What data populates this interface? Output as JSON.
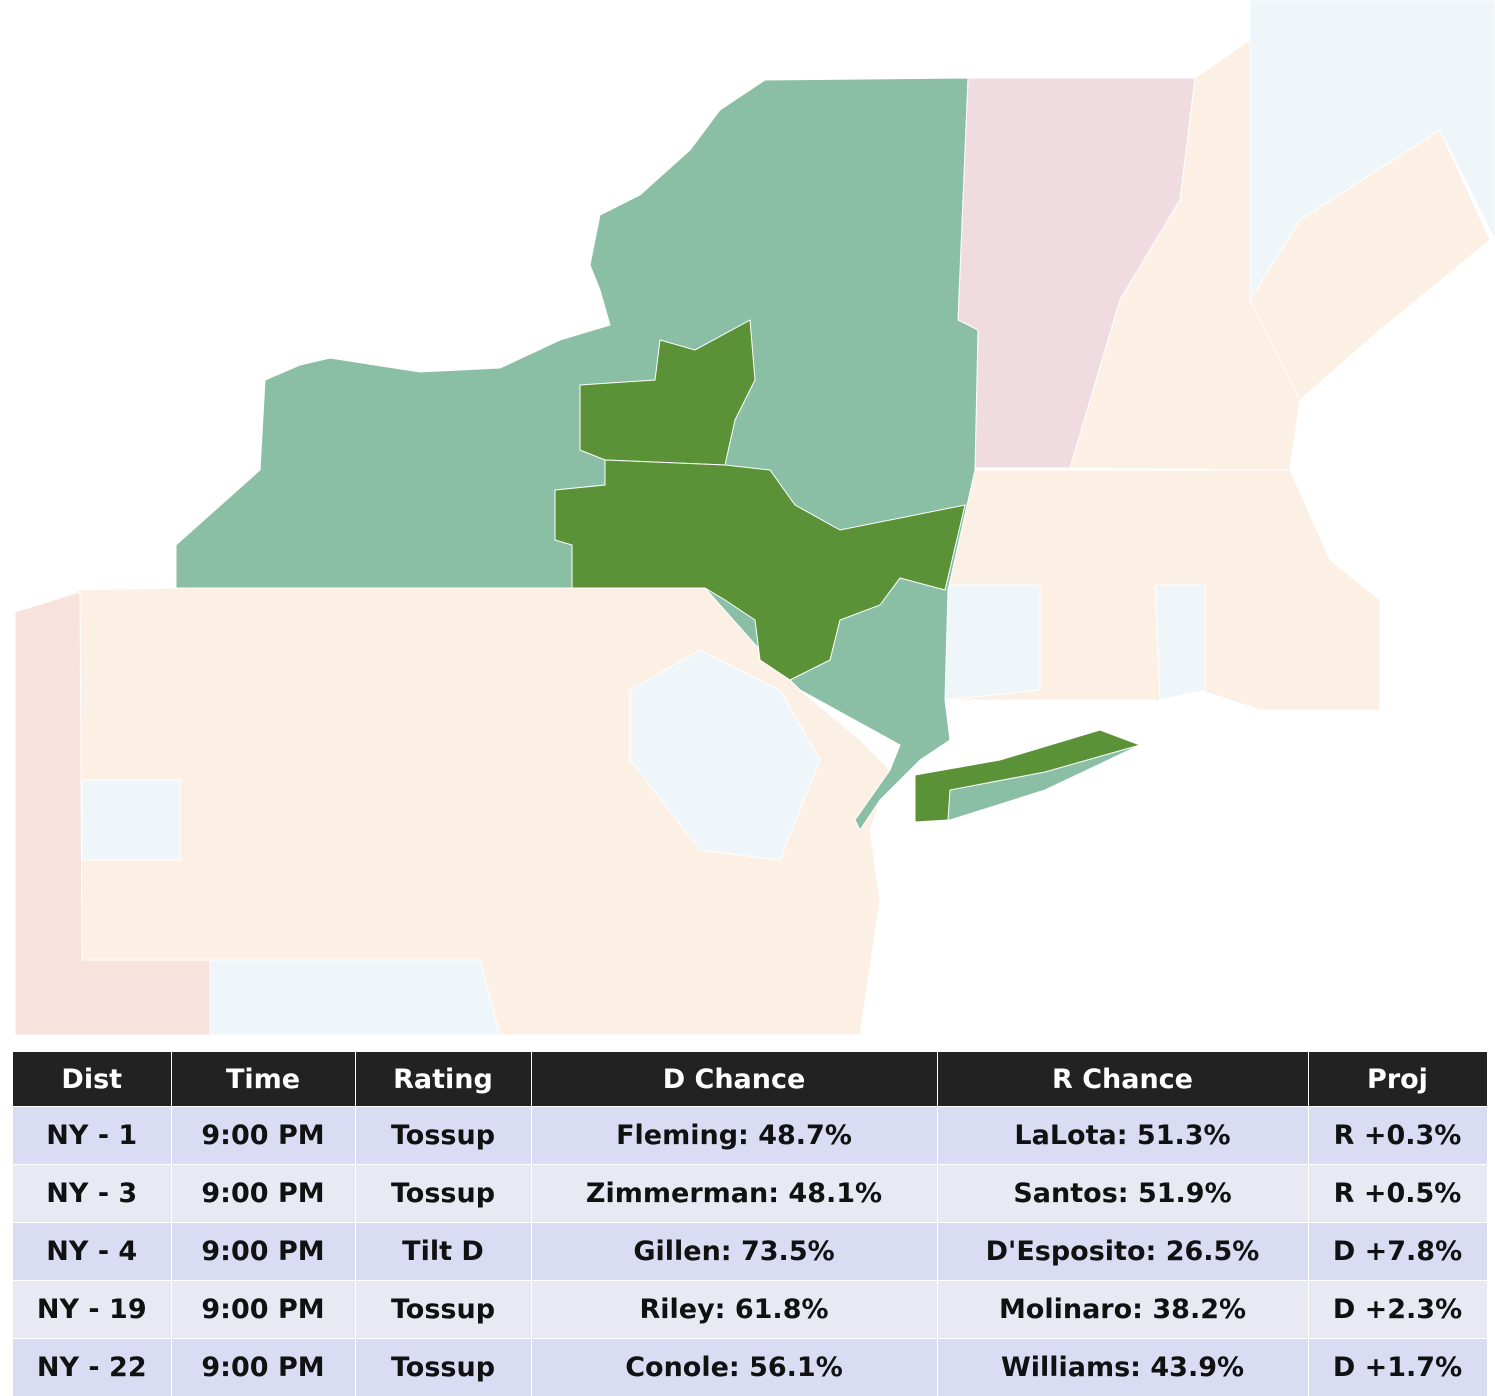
{
  "table": {
    "columns": [
      "Dist",
      "Time",
      "Rating",
      "D Chance",
      "R Chance",
      "Proj"
    ],
    "rows": [
      [
        "NY - 1",
        "9:00 PM",
        "Tossup",
        "Fleming: 48.7%",
        "LaLota: 51.3%",
        "R +0.3%"
      ],
      [
        "NY - 3",
        "9:00 PM",
        "Tossup",
        "Zimmerman: 48.1%",
        "Santos: 51.9%",
        "R +0.5%"
      ],
      [
        "NY - 4",
        "9:00 PM",
        "Tilt D",
        "Gillen: 73.5%",
        "D'Esposito: 26.5%",
        "D +7.8%"
      ],
      [
        "NY - 19",
        "9:00 PM",
        "Tossup",
        "Riley: 61.8%",
        "Molinaro: 38.2%",
        "D +2.3%"
      ],
      [
        "NY - 22",
        "9:00 PM",
        "Tossup",
        "Conole: 56.1%",
        "Williams: 43.9%",
        "D +1.7%"
      ]
    ]
  }
}
